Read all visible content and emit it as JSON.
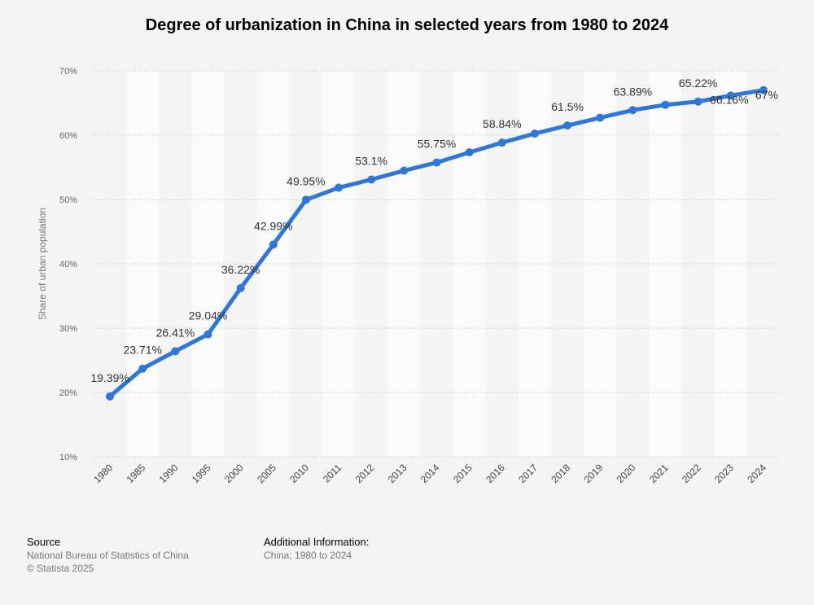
{
  "chart_data": {
    "type": "line",
    "title": "Degree of urbanization in China in selected years from 1980 to 2024",
    "xlabel": "",
    "ylabel": "Share of urban population",
    "categories": [
      "1980",
      "1985",
      "1990",
      "1995",
      "2000",
      "2005",
      "2010",
      "2011",
      "2012",
      "2013",
      "2014",
      "2015",
      "2016",
      "2017",
      "2018",
      "2019",
      "2020",
      "2021",
      "2022",
      "2023",
      "2024"
    ],
    "series": [
      {
        "name": "Share of urban population",
        "values": [
          19.39,
          23.71,
          26.41,
          29.04,
          36.22,
          42.99,
          49.95,
          51.83,
          53.1,
          54.49,
          55.75,
          57.33,
          58.84,
          60.24,
          61.5,
          62.71,
          63.89,
          64.72,
          65.22,
          66.16,
          67
        ],
        "labels": [
          "19.39%",
          "23.71%",
          "26.41%",
          "29.04%",
          "36.22%",
          "42.99%",
          "49.95%",
          "",
          "53.1%",
          "",
          "55.75%",
          "",
          "58.84%",
          "",
          "61.5%",
          "",
          "63.89%",
          "",
          "65.22%",
          "66.16%",
          "67%"
        ]
      }
    ],
    "ylim": [
      10,
      70
    ],
    "yticks": [
      10,
      20,
      30,
      40,
      50,
      60,
      70
    ],
    "ytick_labels": [
      "10%",
      "20%",
      "30%",
      "40%",
      "50%",
      "60%",
      "70%"
    ],
    "grid": true,
    "color": "#2f77d6"
  },
  "footer": {
    "source_heading": "Source",
    "source_line1": "National Bureau of Statistics of China",
    "source_line2": "© Statista 2025",
    "info_heading": "Additional Information:",
    "info_text": "China; 1980 to 2024"
  }
}
